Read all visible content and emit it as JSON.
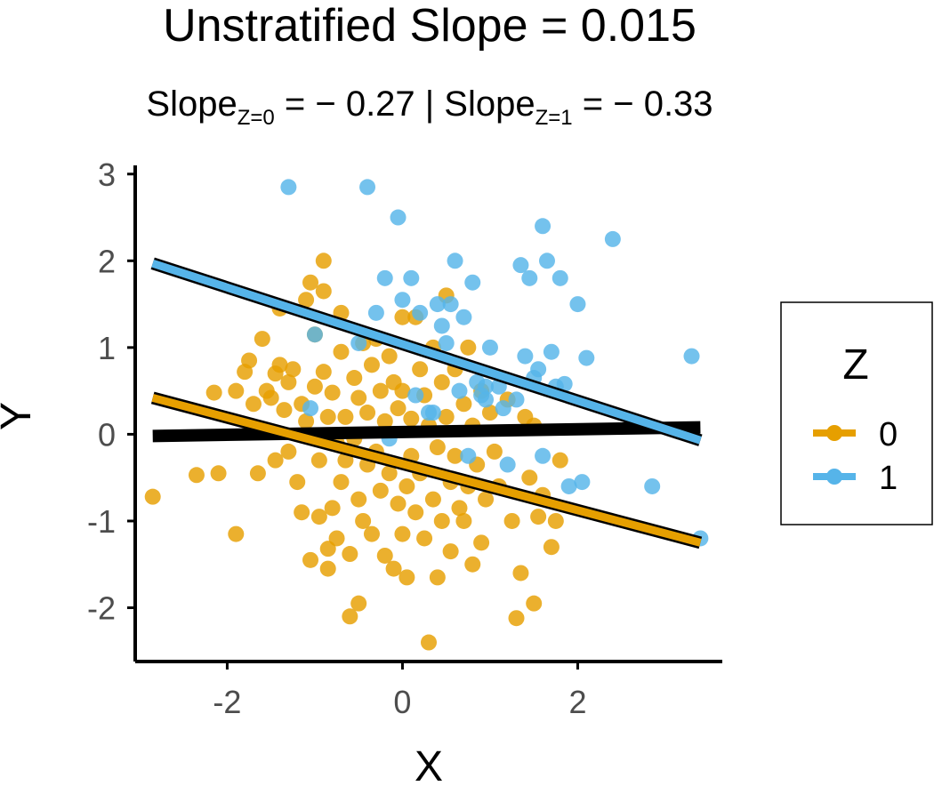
{
  "chart_data": {
    "type": "scatter",
    "title": "Unstratified Slope = 0.015",
    "subtitle": {
      "parts": [
        "Slope",
        "Z=0",
        " = − 0.27 | Slope",
        "Z=1",
        " = − 0.33"
      ]
    },
    "xlabel": "X",
    "ylabel": "Y",
    "xlim": [
      -3.05,
      3.65
    ],
    "ylim": [
      -2.62,
      3.1
    ],
    "xticks": [
      -2,
      0,
      2
    ],
    "yticks": [
      -2,
      -1,
      0,
      1,
      2,
      3
    ],
    "xtick_labels": [
      "-2",
      "0",
      "2"
    ],
    "ytick_labels": [
      "-2",
      "-1",
      "0",
      "1",
      "2",
      "3"
    ],
    "grid": false,
    "legend": {
      "title": "Z",
      "position": "right",
      "entries": [
        "0",
        "1"
      ]
    },
    "colors": {
      "0": "#E69F00",
      "1": "#56B4E9",
      "overall": "#000000"
    },
    "series": [
      {
        "name": "0",
        "color": "#E69F00",
        "points": [
          [
            -2.85,
            -0.72
          ],
          [
            -2.35,
            -0.47
          ],
          [
            -2.15,
            0.48
          ],
          [
            -2.1,
            -0.45
          ],
          [
            -1.9,
            -1.15
          ],
          [
            -1.9,
            0.5
          ],
          [
            -1.8,
            0.72
          ],
          [
            -1.75,
            0.85
          ],
          [
            -1.7,
            0.35
          ],
          [
            -1.65,
            -0.45
          ],
          [
            -1.6,
            1.1
          ],
          [
            -1.55,
            0.5
          ],
          [
            -1.5,
            0.42
          ],
          [
            -1.45,
            0.7
          ],
          [
            -1.45,
            -0.3
          ],
          [
            -1.4,
            1.45
          ],
          [
            -1.4,
            0.8
          ],
          [
            -1.35,
            0.28
          ],
          [
            -1.3,
            0.6
          ],
          [
            -1.3,
            -0.2
          ],
          [
            -1.25,
            0.75
          ],
          [
            -1.2,
            -0.55
          ],
          [
            -1.15,
            0.35
          ],
          [
            -1.15,
            -0.9
          ],
          [
            -1.1,
            1.55
          ],
          [
            -1.1,
            0.15
          ],
          [
            -1.05,
            1.75
          ],
          [
            -1.05,
            -1.45
          ],
          [
            -1.0,
            0.55
          ],
          [
            -1.0,
            1.15
          ],
          [
            -0.95,
            -0.3
          ],
          [
            -0.95,
            -0.95
          ],
          [
            -0.9,
            2.0
          ],
          [
            -0.9,
            1.65
          ],
          [
            -0.9,
            0.72
          ],
          [
            -0.85,
            0.2
          ],
          [
            -0.85,
            -1.32
          ],
          [
            -0.85,
            -1.55
          ],
          [
            -0.8,
            -0.85
          ],
          [
            -0.8,
            0.48
          ],
          [
            -0.75,
            -0.1
          ],
          [
            -0.75,
            -1.2
          ],
          [
            -0.7,
            1.4
          ],
          [
            -0.7,
            0.95
          ],
          [
            -0.7,
            -0.55
          ],
          [
            -0.65,
            0.2
          ],
          [
            -0.65,
            -0.3
          ],
          [
            -0.6,
            -1.38
          ],
          [
            -0.6,
            -2.1
          ],
          [
            -0.55,
            0.65
          ],
          [
            -0.55,
            -0.05
          ],
          [
            -0.5,
            -1.95
          ],
          [
            -0.5,
            -0.75
          ],
          [
            -0.5,
            0.42
          ],
          [
            -0.45,
            1.05
          ],
          [
            -0.45,
            -1.0
          ],
          [
            -0.4,
            0.25
          ],
          [
            -0.4,
            -0.35
          ],
          [
            -0.35,
            0.8
          ],
          [
            -0.35,
            -1.15
          ],
          [
            -0.3,
            1.1
          ],
          [
            -0.3,
            -0.2
          ],
          [
            -0.25,
            0.5
          ],
          [
            -0.25,
            -0.65
          ],
          [
            -0.2,
            -1.4
          ],
          [
            -0.2,
            0.15
          ],
          [
            -0.15,
            0.9
          ],
          [
            -0.15,
            -0.45
          ],
          [
            -0.1,
            -1.55
          ],
          [
            -0.1,
            0.6
          ],
          [
            -0.05,
            0.3
          ],
          [
            -0.05,
            -0.8
          ],
          [
            0.0,
            1.35
          ],
          [
            0.0,
            -1.15
          ],
          [
            0.0,
            0.5
          ],
          [
            0.05,
            -0.6
          ],
          [
            0.05,
            -1.65
          ],
          [
            0.1,
            0.18
          ],
          [
            0.1,
            -0.25
          ],
          [
            0.15,
            1.35
          ],
          [
            0.15,
            -0.9
          ],
          [
            0.2,
            0.75
          ],
          [
            0.2,
            -0.45
          ],
          [
            0.25,
            -1.2
          ],
          [
            0.25,
            0.45
          ],
          [
            0.3,
            -2.4
          ],
          [
            0.3,
            0.1
          ],
          [
            0.35,
            -0.75
          ],
          [
            0.35,
            1.0
          ],
          [
            0.4,
            -1.65
          ],
          [
            0.4,
            -0.15
          ],
          [
            0.45,
            0.6
          ],
          [
            0.45,
            -1.0
          ],
          [
            0.5,
            1.6
          ],
          [
            0.5,
            0.2
          ],
          [
            0.55,
            -0.55
          ],
          [
            0.55,
            -1.35
          ],
          [
            0.6,
            0.75
          ],
          [
            0.6,
            -0.25
          ],
          [
            0.65,
            -0.85
          ],
          [
            0.7,
            0.35
          ],
          [
            0.7,
            -1.0
          ],
          [
            0.75,
            1.0
          ],
          [
            0.75,
            -0.6
          ],
          [
            0.8,
            -1.5
          ],
          [
            0.8,
            0.1
          ],
          [
            0.85,
            -0.35
          ],
          [
            0.9,
            0.5
          ],
          [
            0.9,
            -1.25
          ],
          [
            0.95,
            -0.75
          ],
          [
            1.0,
            0.25
          ],
          [
            1.05,
            -0.2
          ],
          [
            1.1,
            -0.6
          ],
          [
            1.2,
            0.4
          ],
          [
            1.25,
            -1.0
          ],
          [
            1.3,
            -2.12
          ],
          [
            1.35,
            -1.6
          ],
          [
            1.4,
            0.2
          ],
          [
            1.45,
            -0.5
          ],
          [
            1.5,
            0.1
          ],
          [
            1.5,
            -1.95
          ],
          [
            1.55,
            -0.95
          ],
          [
            1.6,
            -0.7
          ],
          [
            1.7,
            -1.3
          ],
          [
            1.75,
            -1.0
          ],
          [
            1.8,
            -0.3
          ]
        ]
      },
      {
        "name": "1",
        "color": "#56B4E9",
        "points": [
          [
            -1.3,
            2.85
          ],
          [
            -0.4,
            2.85
          ],
          [
            -0.05,
            2.5
          ],
          [
            -1.0,
            1.15
          ],
          [
            -0.5,
            1.05
          ],
          [
            -0.3,
            1.4
          ],
          [
            -0.2,
            1.8
          ],
          [
            0.0,
            1.55
          ],
          [
            0.1,
            1.8
          ],
          [
            0.15,
            0.45
          ],
          [
            0.2,
            1.4
          ],
          [
            0.3,
            0.25
          ],
          [
            0.35,
            0.25
          ],
          [
            0.4,
            1.5
          ],
          [
            0.45,
            1.25
          ],
          [
            0.5,
            1.05
          ],
          [
            0.55,
            1.5
          ],
          [
            0.6,
            2.0
          ],
          [
            0.65,
            0.5
          ],
          [
            0.7,
            1.35
          ],
          [
            0.75,
            -0.25
          ],
          [
            0.8,
            1.75
          ],
          [
            0.85,
            0.6
          ],
          [
            0.9,
            0.45
          ],
          [
            0.95,
            0.55
          ],
          [
            1.0,
            1.0
          ],
          [
            1.1,
            0.55
          ],
          [
            1.15,
            0.3
          ],
          [
            1.2,
            -0.35
          ],
          [
            1.3,
            0.4
          ],
          [
            1.35,
            1.95
          ],
          [
            1.4,
            0.9
          ],
          [
            1.45,
            1.8
          ],
          [
            1.5,
            0.65
          ],
          [
            1.55,
            0.75
          ],
          [
            1.6,
            2.4
          ],
          [
            1.65,
            2.0
          ],
          [
            1.7,
            0.95
          ],
          [
            1.75,
            0.55
          ],
          [
            1.8,
            1.8
          ],
          [
            1.85,
            0.58
          ],
          [
            1.9,
            -0.6
          ],
          [
            2.0,
            1.5
          ],
          [
            2.05,
            -0.55
          ],
          [
            2.1,
            0.88
          ],
          [
            2.4,
            2.25
          ],
          [
            2.85,
            -0.6
          ],
          [
            3.3,
            0.9
          ],
          [
            3.4,
            -1.2
          ],
          [
            -1.05,
            0.3
          ],
          [
            -0.15,
            -0.05
          ],
          [
            0.95,
            0.4
          ],
          [
            1.6,
            -0.25
          ]
        ]
      }
    ],
    "fits": [
      {
        "name": "overall",
        "color": "#000000",
        "x": [
          -2.85,
          3.4
        ],
        "y": [
          -0.02,
          0.08
        ]
      },
      {
        "name": "0",
        "color": "#E69F00",
        "x": [
          -2.85,
          3.4
        ],
        "y": [
          0.42,
          -1.25
        ]
      },
      {
        "name": "1",
        "color": "#56B4E9",
        "x": [
          -2.85,
          3.4
        ],
        "y": [
          1.97,
          -0.07
        ]
      }
    ]
  }
}
